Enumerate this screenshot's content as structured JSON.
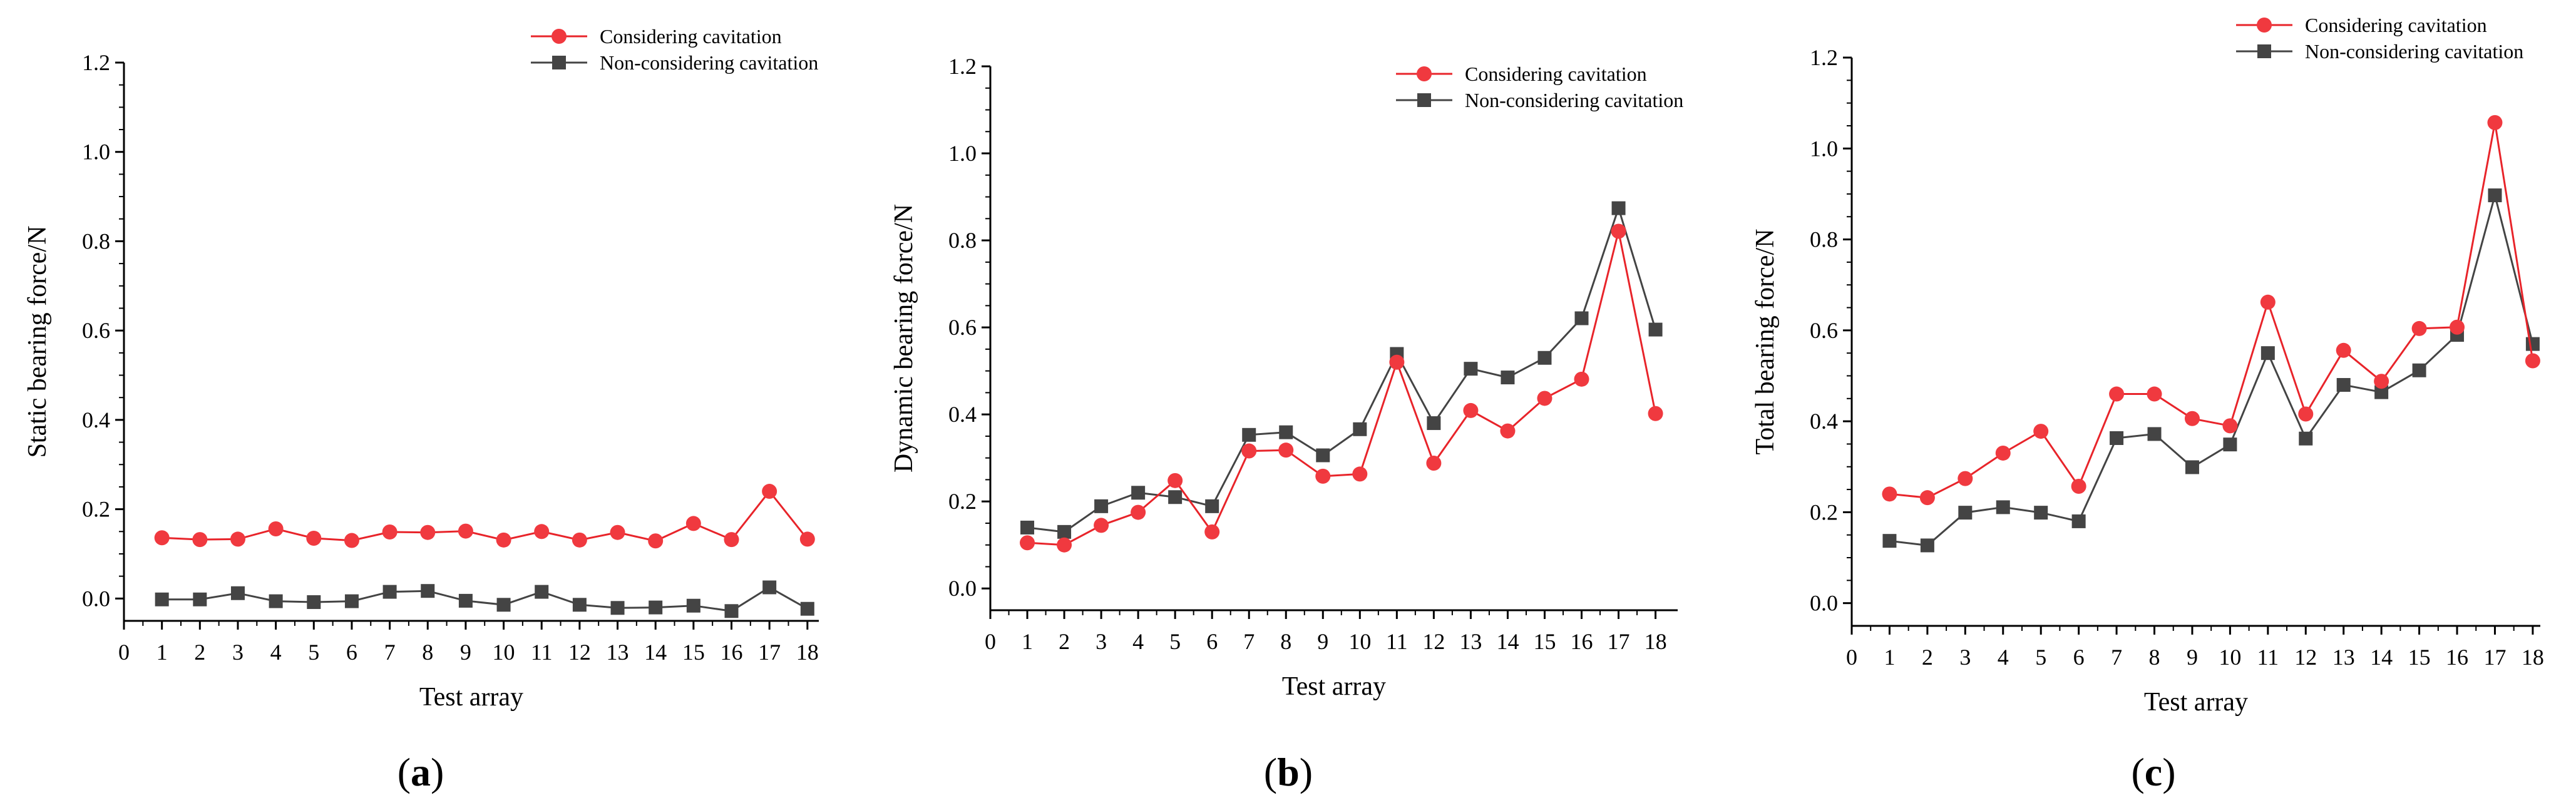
{
  "colors": {
    "considering": "#f0393f",
    "considering_line": "#e8242a",
    "non_considering": "#444444",
    "axis": "#000000"
  },
  "legend": {
    "considering": "Considering cavitation",
    "non_considering": "Non-considering cavitation"
  },
  "panel_labels": [
    {
      "open": "(",
      "letter": "a",
      "close": ")"
    },
    {
      "open": "(",
      "letter": "b",
      "close": ")"
    },
    {
      "open": "(",
      "letter": "c",
      "close": ")"
    }
  ],
  "chart_data": [
    {
      "type": "line",
      "panel": "a",
      "xlabel": "Test array",
      "ylabel": "Static bearing force/N",
      "xlim": [
        0,
        18.3
      ],
      "ylim": [
        -0.05,
        1.2
      ],
      "x_ticks": [
        0,
        1,
        2,
        3,
        4,
        5,
        6,
        7,
        8,
        9,
        10,
        11,
        12,
        13,
        14,
        15,
        16,
        17,
        18
      ],
      "y_ticks": [
        0.0,
        0.2,
        0.4,
        0.6,
        0.8,
        1.0,
        1.2
      ],
      "y_tick_labels": [
        "0.0",
        "0.2",
        "0.4",
        "0.6",
        "0.8",
        "1.0",
        "1.2"
      ],
      "legend_position": "top-right",
      "x": [
        1,
        2,
        3,
        4,
        5,
        6,
        7,
        8,
        9,
        10,
        11,
        12,
        13,
        14,
        15,
        16,
        17,
        18
      ],
      "series": [
        {
          "name": "Considering cavitation",
          "marker": "circle",
          "values": [
            0.136,
            0.132,
            0.133,
            0.156,
            0.135,
            0.13,
            0.149,
            0.148,
            0.151,
            0.131,
            0.15,
            0.131,
            0.148,
            0.129,
            0.168,
            0.132,
            0.24,
            0.133
          ]
        },
        {
          "name": "Non-considering cavitation",
          "marker": "square",
          "values": [
            -0.002,
            -0.002,
            0.012,
            -0.006,
            -0.008,
            -0.006,
            0.015,
            0.017,
            -0.005,
            -0.014,
            0.015,
            -0.014,
            -0.021,
            -0.02,
            -0.016,
            -0.028,
            0.025,
            -0.023
          ]
        }
      ]
    },
    {
      "type": "line",
      "panel": "b",
      "xlabel": "Test array",
      "ylabel": "Dynamic bearing force/N",
      "xlim": [
        0,
        18.6
      ],
      "ylim": [
        -0.05,
        1.2
      ],
      "x_ticks": [
        0,
        1,
        2,
        3,
        4,
        5,
        6,
        7,
        8,
        9,
        10,
        11,
        12,
        13,
        14,
        15,
        16,
        17,
        18
      ],
      "y_ticks": [
        0.0,
        0.2,
        0.4,
        0.6,
        0.8,
        1.0,
        1.2
      ],
      "y_tick_labels": [
        "0.0",
        "0.2",
        "0.4",
        "0.6",
        "0.8",
        "1.0",
        "1.2"
      ],
      "legend_position": "top-right",
      "x": [
        1,
        2,
        3,
        4,
        5,
        6,
        7,
        8,
        9,
        10,
        11,
        12,
        13,
        14,
        15,
        16,
        17,
        18
      ],
      "series": [
        {
          "name": "Considering cavitation",
          "marker": "circle",
          "values": [
            0.105,
            0.1,
            0.145,
            0.175,
            0.248,
            0.13,
            0.316,
            0.318,
            0.258,
            0.263,
            0.52,
            0.288,
            0.409,
            0.362,
            0.437,
            0.481,
            0.821,
            0.402
          ]
        },
        {
          "name": "Non-considering cavitation",
          "marker": "square",
          "values": [
            0.14,
            0.13,
            0.189,
            0.22,
            0.21,
            0.189,
            0.353,
            0.359,
            0.306,
            0.366,
            0.539,
            0.38,
            0.505,
            0.485,
            0.53,
            0.621,
            0.874,
            0.595
          ]
        }
      ]
    },
    {
      "type": "line",
      "panel": "c",
      "xlabel": "Test array",
      "ylabel": "Total bearing force/N",
      "xlim": [
        0,
        18.2
      ],
      "ylim": [
        -0.05,
        1.2
      ],
      "x_ticks": [
        0,
        1,
        2,
        3,
        4,
        5,
        6,
        7,
        8,
        9,
        10,
        11,
        12,
        13,
        14,
        15,
        16,
        17,
        18
      ],
      "y_ticks": [
        0.0,
        0.2,
        0.4,
        0.6,
        0.8,
        1.0,
        1.2
      ],
      "y_tick_labels": [
        "0.0",
        "0.2",
        "0.4",
        "0.6",
        "0.8",
        "1.0",
        "1.2"
      ],
      "legend_position": "top-right",
      "x": [
        1,
        2,
        3,
        4,
        5,
        6,
        7,
        8,
        9,
        10,
        11,
        12,
        13,
        14,
        15,
        16,
        17,
        18
      ],
      "series": [
        {
          "name": "Considering cavitation",
          "marker": "circle",
          "values": [
            0.24,
            0.232,
            0.274,
            0.33,
            0.378,
            0.257,
            0.46,
            0.46,
            0.406,
            0.39,
            0.662,
            0.416,
            0.556,
            0.488,
            0.604,
            0.607,
            1.057,
            0.533
          ]
        },
        {
          "name": "Non-considering cavitation",
          "marker": "square",
          "values": [
            0.137,
            0.127,
            0.199,
            0.211,
            0.199,
            0.18,
            0.363,
            0.372,
            0.299,
            0.349,
            0.55,
            0.362,
            0.48,
            0.464,
            0.512,
            0.59,
            0.897,
            0.57
          ]
        }
      ]
    }
  ]
}
